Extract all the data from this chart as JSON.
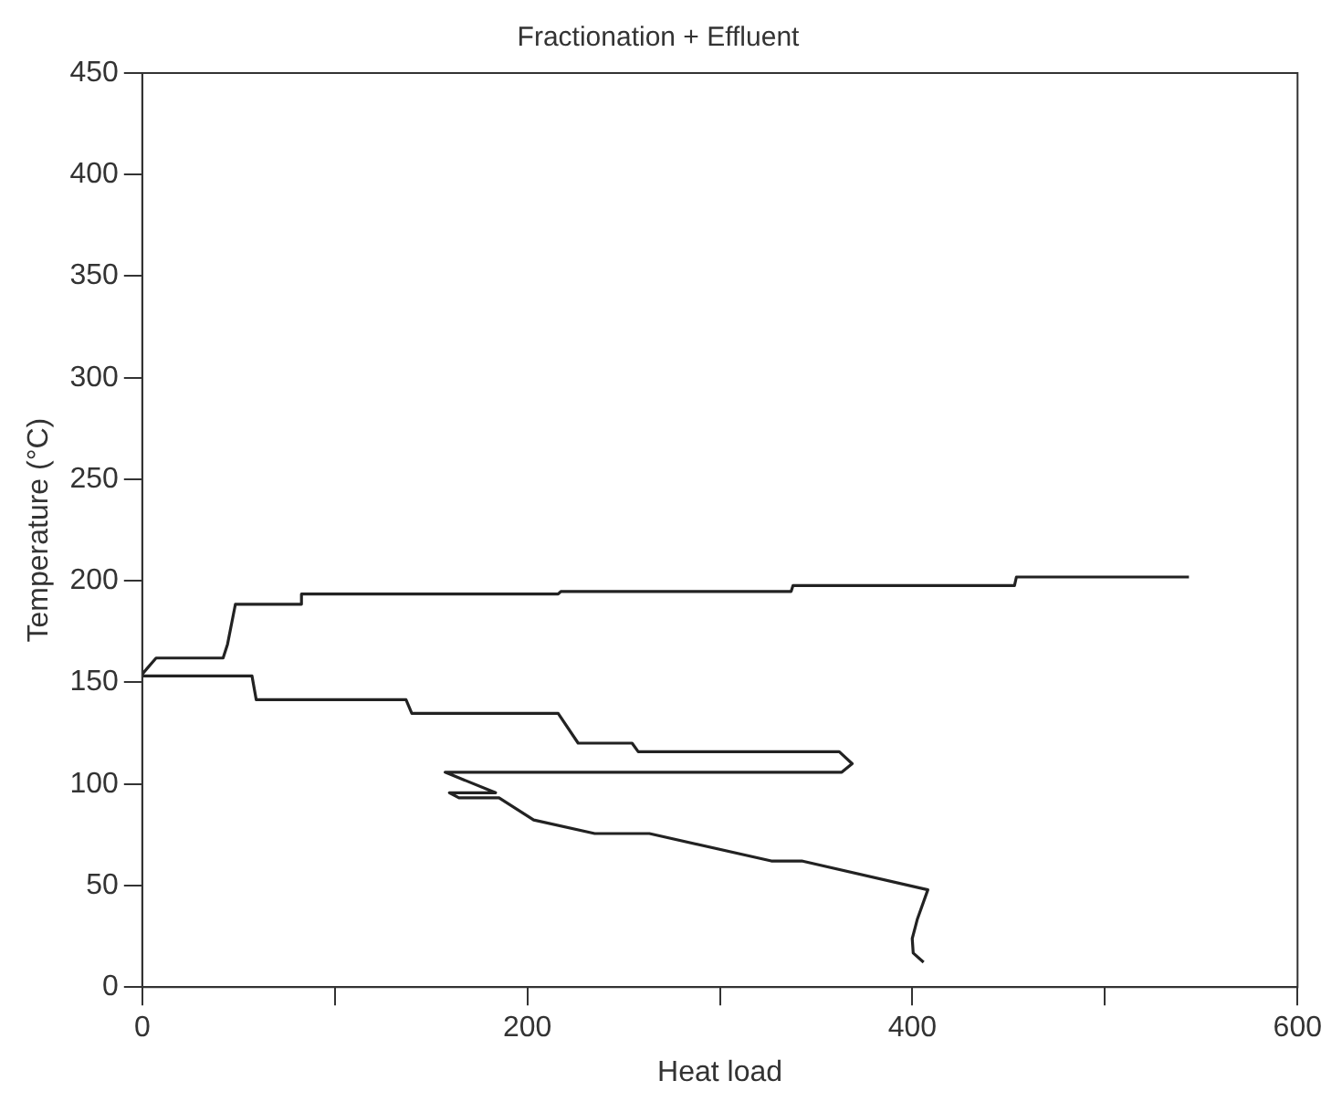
{
  "chart_data": {
    "type": "line",
    "title": "Fractionation + Effluent",
    "xlabel": "Heat load",
    "ylabel": "Temperature (°C)",
    "series": [
      {
        "color": "#222222",
        "x": [
          543.6,
          454,
          453,
          338,
          337,
          217.4,
          216,
          82.7,
          82.7,
          48.4,
          44.3,
          42,
          7.2,
          0,
          0,
          57,
          59.2,
          137,
          140,
          216,
          226.4,
          254.4,
          257.6,
          362,
          368.7,
          363.3,
          157.3,
          183.5,
          159.5,
          164.5,
          185.3,
          203.3,
          235,
          263.4,
          326.7,
          342.5,
          408,
          402.6,
          399.9,
          400.4,
          405.8
        ],
        "values": [
          201.9,
          201.9,
          197.7,
          197.7,
          194.8,
          194.8,
          193.5,
          193.5,
          188.5,
          188.5,
          168.8,
          162,
          162,
          154.1,
          153.2,
          153.2,
          141.5,
          141.5,
          134.8,
          134.8,
          120.1,
          120.1,
          115.9,
          115.9,
          110,
          105.8,
          105.8,
          95.7,
          95.7,
          93.2,
          93.2,
          82.3,
          75.6,
          75.6,
          62.1,
          62.1,
          47.9,
          33.6,
          23.9,
          16.8,
          12.2
        ]
      }
    ],
    "xlim": [
      0,
      600
    ],
    "xticks": [
      0,
      {
        "value": 100,
        "label": null
      },
      200,
      {
        "value": 300,
        "label": null
      },
      400,
      {
        "value": 500,
        "label": null
      },
      600
    ],
    "ylim": [
      0,
      450
    ],
    "yticks": [
      0,
      50,
      100,
      150,
      200,
      250,
      300,
      350,
      400,
      450
    ],
    "grid": false,
    "legend": false,
    "marker": "none",
    "line_style": "solid"
  }
}
